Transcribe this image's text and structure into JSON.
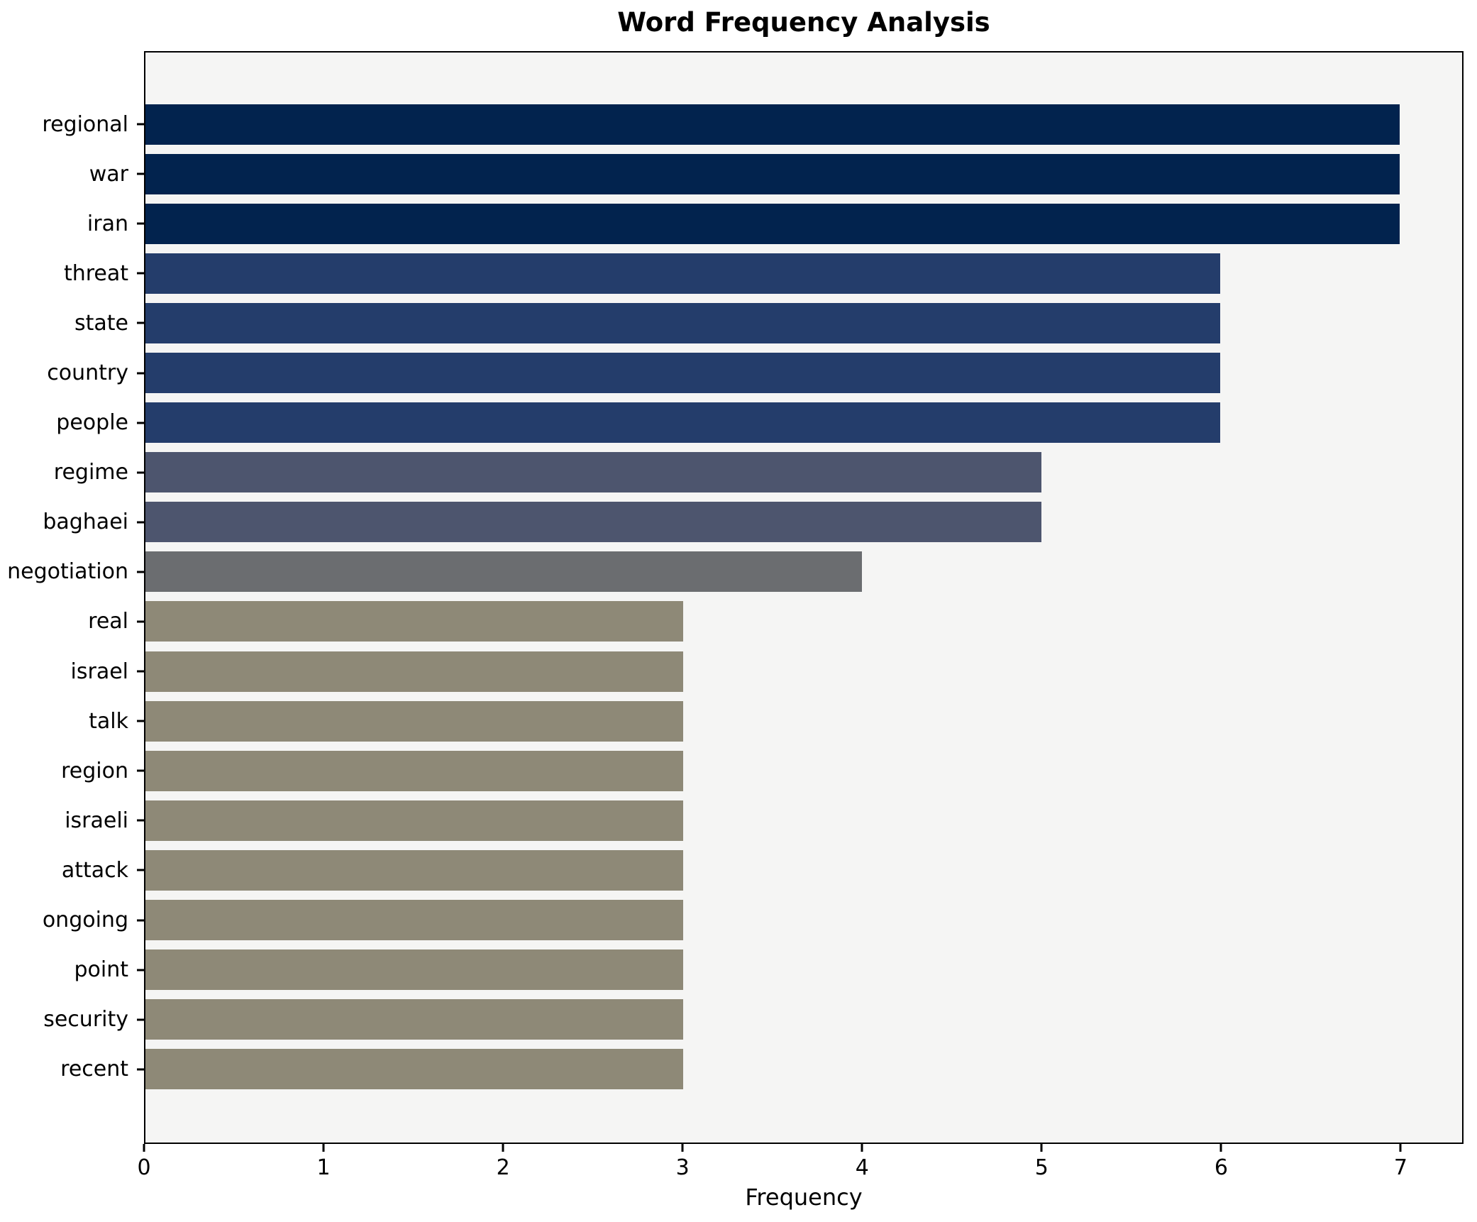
{
  "title": "Word Frequency Analysis",
  "chart_data": {
    "type": "bar",
    "orientation": "horizontal",
    "title": "Word Frequency Analysis",
    "xlabel": "Frequency",
    "ylabel": "",
    "categories": [
      "regional",
      "war",
      "iran",
      "threat",
      "state",
      "country",
      "people",
      "regime",
      "baghaei",
      "negotiation",
      "real",
      "israel",
      "talk",
      "region",
      "israeli",
      "attack",
      "ongoing",
      "point",
      "security",
      "recent"
    ],
    "values": [
      7,
      7,
      7,
      6,
      6,
      6,
      6,
      5,
      5,
      4,
      3,
      3,
      3,
      3,
      3,
      3,
      3,
      3,
      3,
      3
    ],
    "x_ticks": [
      0,
      1,
      2,
      3,
      4,
      5,
      6,
      7
    ],
    "xlim": [
      0,
      7.35
    ],
    "grid": false,
    "legend": false,
    "colors_by_value": {
      "7": "#02234e",
      "6": "#243d6b",
      "5": "#4d556e",
      "4": "#6b6d70",
      "3": "#8e8977"
    },
    "plot_background": "#f5f5f4",
    "figure_background": "#ffffff",
    "spine_color": "#000000"
  }
}
